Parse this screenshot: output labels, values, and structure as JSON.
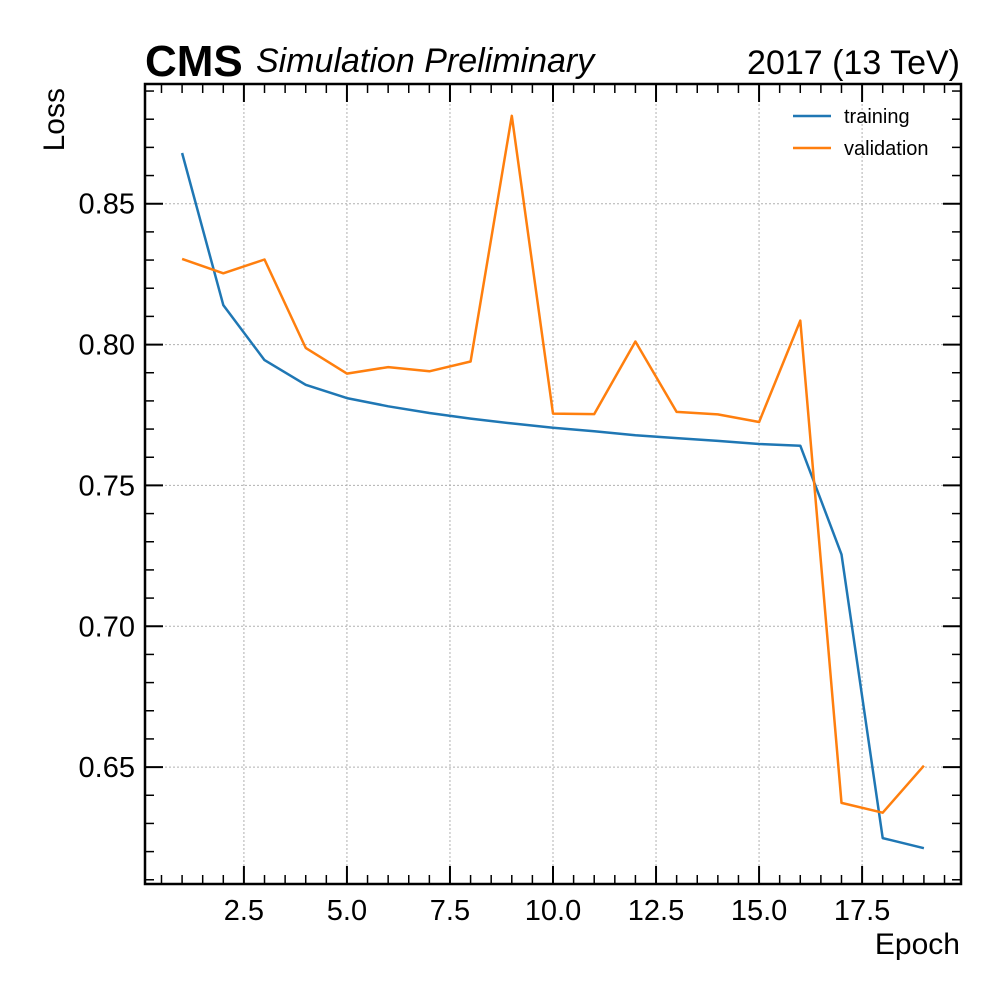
{
  "header": {
    "experiment": "CMS",
    "extra_text": "Simulation Preliminary",
    "lumi_text": "2017 (13 TeV)"
  },
  "chart_data": {
    "type": "line",
    "xlabel": "Epoch",
    "ylabel": "Loss",
    "xlim": [
      0.1,
      19.9
    ],
    "ylim": [
      0.6085,
      0.8925
    ],
    "x_ticks": [
      2.5,
      5.0,
      7.5,
      10.0,
      12.5,
      15.0,
      17.5
    ],
    "x_tick_labels": [
      "2.5",
      "5.0",
      "7.5",
      "10.0",
      "12.5",
      "15.0",
      "17.5"
    ],
    "y_ticks": [
      0.65,
      0.7,
      0.75,
      0.8,
      0.85
    ],
    "y_tick_labels": [
      "0.65",
      "0.70",
      "0.75",
      "0.80",
      "0.85"
    ],
    "grid": true,
    "legend_position": "top-right",
    "x": [
      1,
      2,
      3,
      4,
      5,
      6,
      7,
      8,
      9,
      10,
      11,
      12,
      13,
      14,
      15,
      16,
      17,
      18,
      19
    ],
    "series": [
      {
        "name": "training",
        "color": "#1f77b4",
        "values": [
          0.868,
          0.814,
          0.7945,
          0.7857,
          0.781,
          0.7781,
          0.7757,
          0.7737,
          0.772,
          0.7705,
          0.7692,
          0.7678,
          0.7668,
          0.7658,
          0.7647,
          0.7641,
          0.7255,
          0.6248,
          0.6212
        ]
      },
      {
        "name": "validation",
        "color": "#ff7f0e",
        "values": [
          0.8304,
          0.8253,
          0.8302,
          0.7988,
          0.7897,
          0.792,
          0.7905,
          0.794,
          0.8812,
          0.7755,
          0.7753,
          0.8011,
          0.7761,
          0.7752,
          0.7725,
          0.8085,
          0.6373,
          0.6338,
          0.6505
        ]
      }
    ]
  }
}
